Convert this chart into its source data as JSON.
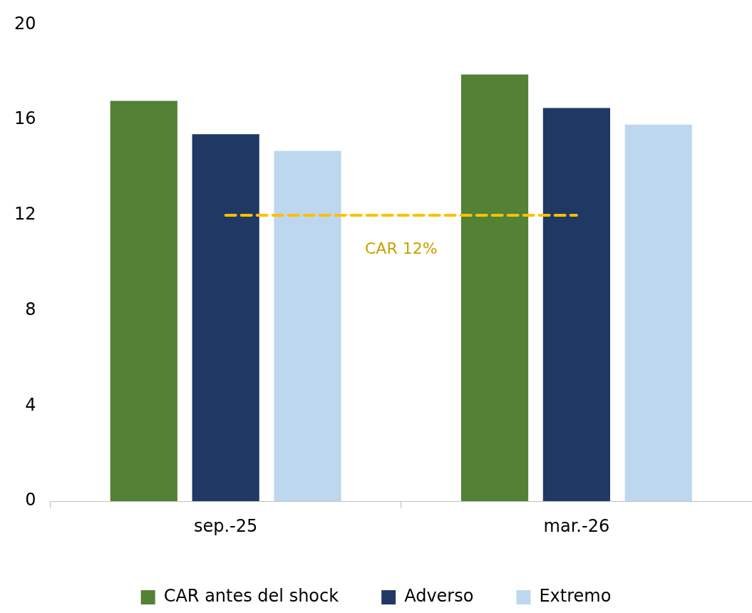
{
  "chart_data": {
    "type": "bar",
    "categories": [
      "sep.-25",
      "mar.-26"
    ],
    "series": [
      {
        "name": "CAR antes del shock",
        "color": "#538135",
        "values": [
          16.8,
          17.9
        ]
      },
      {
        "name": "Adverso",
        "color": "#203864",
        "values": [
          15.4,
          16.5
        ]
      },
      {
        "name": "Extremo",
        "color": "#bdd7ee",
        "values": [
          14.7,
          15.8
        ]
      }
    ],
    "ylim": [
      0,
      20
    ],
    "yticks": [
      0,
      4,
      8,
      12,
      16,
      20
    ],
    "grid": false,
    "legend": "bottom",
    "ref_lines": [
      {
        "axis": "y",
        "value": 12,
        "label": "CAR 12%",
        "color": "#ffc000",
        "line_style": "dashed"
      }
    ]
  }
}
